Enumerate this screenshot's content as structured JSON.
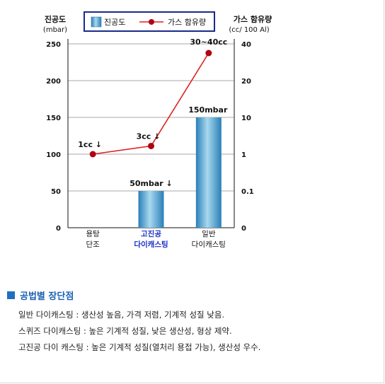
{
  "chart_data": {
    "type": "bar+line",
    "left_axis": {
      "label_line1": "진공도",
      "label_line2": "(mbar)",
      "ticks": [
        "0",
        "50",
        "100",
        "150",
        "200",
        "250"
      ],
      "ylim": [
        0,
        250
      ]
    },
    "right_axis": {
      "label_line1": "가스 함유량",
      "label_line2": "(cc/ 100 Al)",
      "ticks": [
        "0",
        "0.1",
        "1",
        "10",
        "20",
        "40"
      ]
    },
    "categories": [
      {
        "line1": "용탕",
        "line2": "단조",
        "highlight": false
      },
      {
        "line1": "고진공",
        "line2": "다이캐스팅",
        "highlight": true
      },
      {
        "line1": "일반",
        "line2": "다이캐스팅",
        "highlight": false
      }
    ],
    "legend": {
      "bar": "진공도",
      "line": "가스 함유량"
    },
    "bar_series": {
      "name": "진공도",
      "values": [
        null,
        50,
        150
      ],
      "labels": [
        "",
        "50mbar ↓",
        "150mbar"
      ]
    },
    "line_series": {
      "name": "가스 함유량",
      "values": [
        1,
        3,
        35
      ],
      "labels": [
        "1cc ↓",
        "3cc ↓",
        "30~40cc"
      ]
    },
    "colors": {
      "bar": "#3d96c8",
      "bar_light": "#a8d8ee",
      "line": "#dd2020",
      "marker": "#b00014",
      "grid": "#aaaaaa",
      "highlight_text": "#1a2fc8",
      "legend_border": "#1a2a8a"
    }
  },
  "notes": {
    "title": "공법별 장단점",
    "lines": [
      "일반 다이캐스팅 : 생산성 높음, 가격 저렴, 기계적 성질 낮음.",
      "스퀴즈 다이캐스팅 : 높은 기계적 성질, 낮은 생산성, 형상 제약.",
      "고진공 다이 캐스팅 : 높은 기계적 성질(열처리 용접 가능), 생산성 우수."
    ]
  }
}
